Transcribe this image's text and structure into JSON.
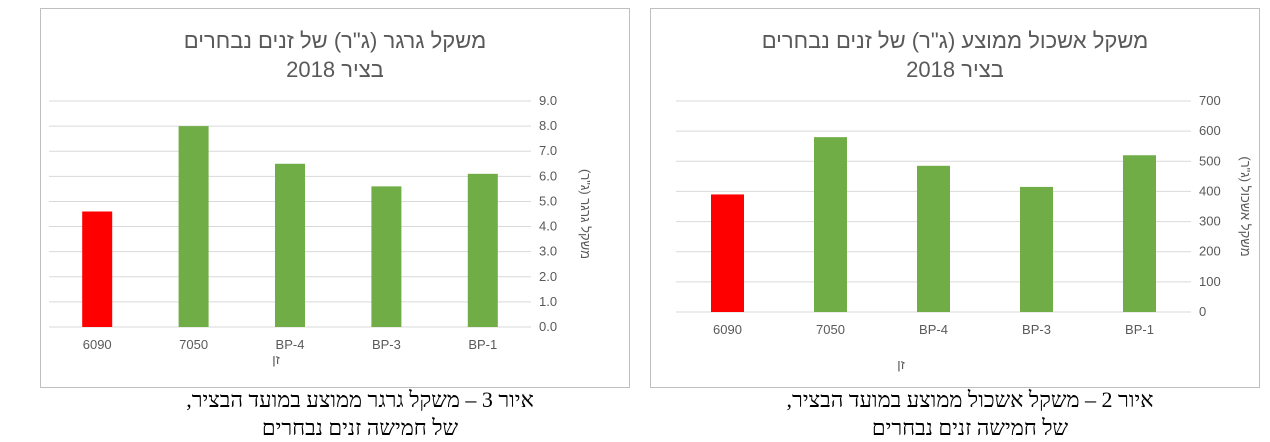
{
  "colors": {
    "highlight": "#ff0000",
    "bars": "#70ad47",
    "grid": "#d9d9d9",
    "text": "#595959"
  },
  "captions": {
    "left": {
      "line1": "איור 3 – משקל גרגר ממוצע במועד הבציר,",
      "line2": "של חמישה זנים נבחרים"
    },
    "right": {
      "line1": "איור 2 – משקל אשכול ממוצע במועד הבציר,",
      "line2": "של חמישה זנים נבחרים"
    }
  },
  "chart_data": [
    {
      "type": "bar",
      "title_line1": "משקל גרגר (ג\"ר) של זנים נבחרים",
      "title_line2": "בציר 2018",
      "categories": [
        "6090",
        "7050",
        "BP-4",
        "BP-3",
        "BP-1"
      ],
      "values": [
        4.6,
        8.0,
        6.5,
        5.6,
        6.1
      ],
      "bar_colors": [
        "#ff0000",
        "#70ad47",
        "#70ad47",
        "#70ad47",
        "#70ad47"
      ],
      "ylabel": "משקל גרגר (ג\"ר)",
      "xlabel": "זן",
      "ylim": [
        0,
        9
      ],
      "yticks": [
        "0.0",
        "1.0",
        "2.0",
        "3.0",
        "4.0",
        "5.0",
        "6.0",
        "7.0",
        "8.0",
        "9.0"
      ],
      "y_axis_side": "right",
      "grid": true
    },
    {
      "type": "bar",
      "title_line1": "משקל אשכול ממוצע (ג\"ר) של זנים נבחרים",
      "title_line2": "בציר 2018",
      "categories": [
        "6090",
        "7050",
        "BP-4",
        "BP-3",
        "BP-1"
      ],
      "values": [
        390,
        580,
        485,
        415,
        520
      ],
      "bar_colors": [
        "#ff0000",
        "#70ad47",
        "#70ad47",
        "#70ad47",
        "#70ad47"
      ],
      "ylabel": "משקל אשכול (ג\"ר)",
      "xlabel": "זן",
      "ylim": [
        0,
        700
      ],
      "yticks": [
        "0",
        "100",
        "200",
        "300",
        "400",
        "500",
        "600",
        "700"
      ],
      "y_axis_side": "right",
      "grid": true
    }
  ]
}
